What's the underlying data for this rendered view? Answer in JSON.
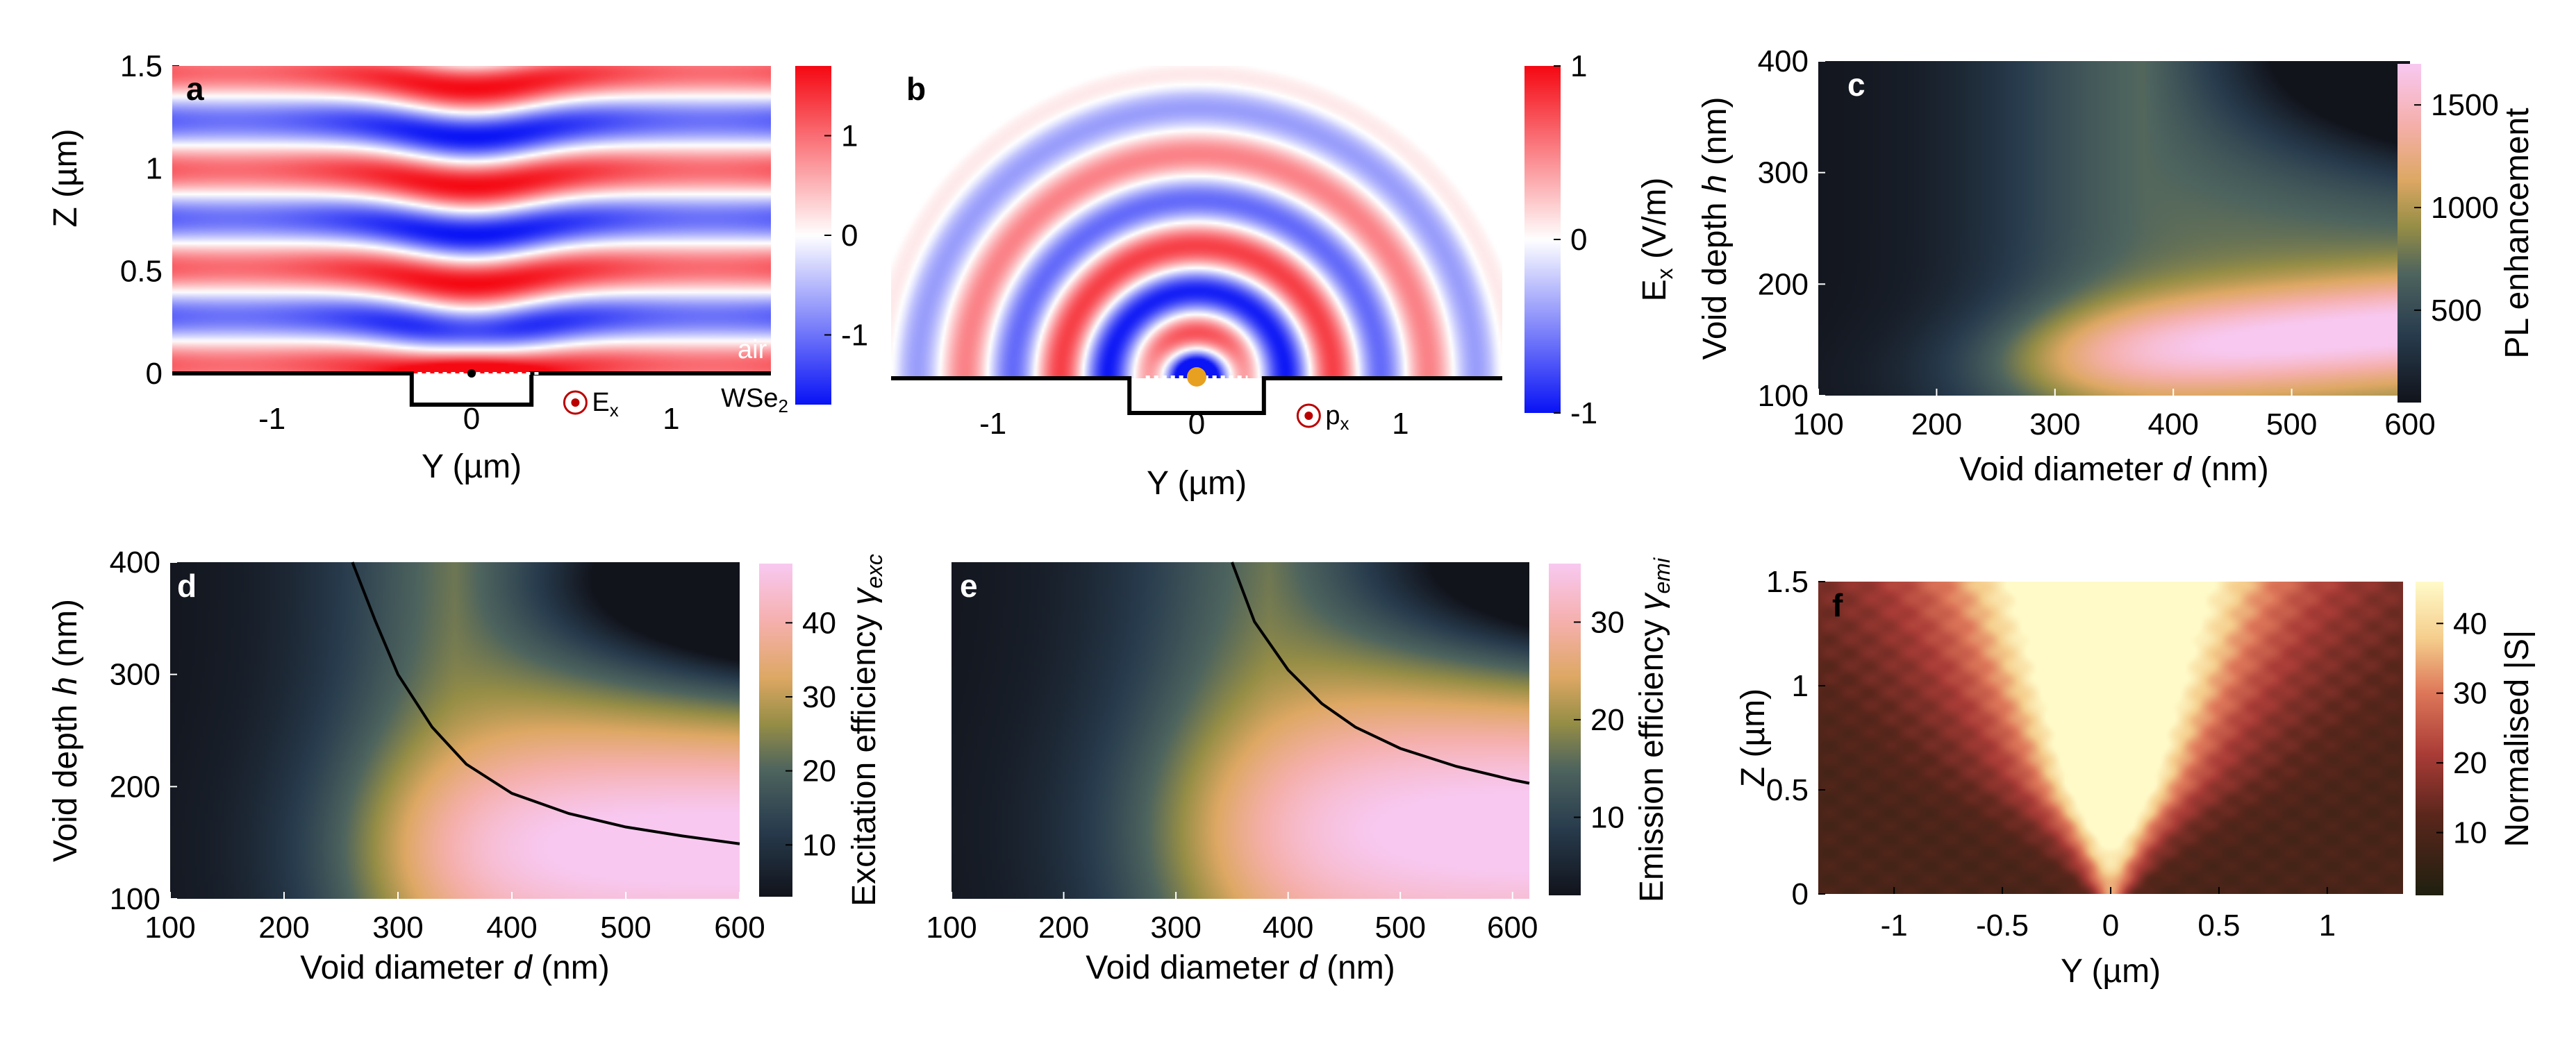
{
  "chart_data": [
    {
      "id": "a",
      "type": "heatmap",
      "panel_letter": "a",
      "xlabel": "Y (µm)",
      "ylabel": "Z (µm)",
      "xticks": [
        "-1",
        "0",
        "1"
      ],
      "xtick_values": [
        -1,
        0,
        1
      ],
      "yticks": [
        "0",
        "0.5",
        "1",
        "1.5"
      ],
      "ytick_values": [
        0,
        0.5,
        1,
        1.5
      ],
      "xlim": [
        -1.5,
        1.5
      ],
      "ylim": [
        0,
        1.5
      ],
      "colorbar": {
        "ticks": [
          "-1",
          "0",
          "1"
        ],
        "tick_values": [
          -1,
          0,
          1
        ],
        "range": [
          -1.7,
          1.7
        ],
        "colormap": "blue-white-red"
      },
      "annotations": [
        "air",
        "WSe",
        "2",
        "E",
        "x"
      ]
    },
    {
      "id": "b",
      "type": "heatmap",
      "panel_letter": "b",
      "xlabel": "Y (µm)",
      "ylabel": "",
      "xticks": [
        "-1",
        "0",
        "1"
      ],
      "xtick_values": [
        -1,
        0,
        1
      ],
      "xlim": [
        -1.5,
        1.5
      ],
      "colorbar": {
        "label": "E",
        "label_sub": "x",
        "label_unit": " (V/m)",
        "ticks": [
          "-1",
          "0",
          "1"
        ],
        "tick_values": [
          -1,
          0,
          1
        ],
        "range": [
          -1,
          1
        ],
        "colormap": "blue-white-red"
      },
      "annotations": [
        "p",
        "x"
      ]
    },
    {
      "id": "c",
      "type": "heatmap",
      "panel_letter": "c",
      "xlabel_pre": "Void diameter ",
      "xlabel_var": "d",
      "xlabel_post": " (nm)",
      "ylabel_pre": "Void depth ",
      "ylabel_var": "h",
      "ylabel_post": " (nm)",
      "xticks": [
        "100",
        "200",
        "300",
        "400",
        "500",
        "600"
      ],
      "xtick_values": [
        100,
        200,
        300,
        400,
        500,
        600
      ],
      "yticks": [
        "100",
        "200",
        "300",
        "400"
      ],
      "ytick_values": [
        100,
        200,
        300,
        400
      ],
      "xlim": [
        100,
        600
      ],
      "ylim": [
        100,
        400
      ],
      "colorbar": {
        "label": "PL enhancement",
        "ticks": [
          "500",
          "1000",
          "1500"
        ],
        "tick_values": [
          500,
          1000,
          1500
        ],
        "range": [
          50,
          1700
        ],
        "colormap": "batlow-like"
      }
    },
    {
      "id": "d",
      "type": "heatmap",
      "panel_letter": "d",
      "xlabel_pre": "Void diameter ",
      "xlabel_var": "d",
      "xlabel_post": " (nm)",
      "ylabel_pre": "Void depth ",
      "ylabel_var": "h",
      "ylabel_post": " (nm)",
      "xticks": [
        "100",
        "200",
        "300",
        "400",
        "500",
        "600"
      ],
      "xtick_values": [
        100,
        200,
        300,
        400,
        500,
        600
      ],
      "yticks": [
        "100",
        "200",
        "300",
        "400"
      ],
      "ytick_values": [
        100,
        200,
        300,
        400
      ],
      "xlim": [
        100,
        600
      ],
      "ylim": [
        100,
        400
      ],
      "colorbar": {
        "label": "Excitation efficiency ",
        "label_var": "γ",
        "label_sub": "exc",
        "ticks": [
          "10",
          "20",
          "30",
          "40"
        ],
        "tick_values": [
          10,
          20,
          30,
          40
        ],
        "range": [
          3,
          48
        ],
        "colormap": "batlow-like"
      },
      "curve": {
        "x": [
          260,
          280,
          300,
          330,
          360,
          400,
          450,
          500,
          550,
          600
        ],
        "y": [
          400,
          348,
          300,
          253,
          220,
          194,
          176,
          164,
          156,
          149
        ]
      }
    },
    {
      "id": "e",
      "type": "heatmap",
      "panel_letter": "e",
      "xlabel_pre": "Void diameter ",
      "xlabel_var": "d",
      "xlabel_post": " (nm)",
      "ylabel_pre": "",
      "ylabel_var": "",
      "ylabel_post": "",
      "xticks": [
        "100",
        "200",
        "300",
        "400",
        "500",
        "600"
      ],
      "xtick_values": [
        100,
        200,
        300,
        400,
        500,
        600
      ],
      "xlim": [
        100,
        615
      ],
      "ylim": [
        100,
        400
      ],
      "colorbar": {
        "label": "Emission efficiency ",
        "label_var": "γ",
        "label_sub": "emi",
        "ticks": [
          "10",
          "20",
          "30"
        ],
        "tick_values": [
          10,
          20,
          30
        ],
        "range": [
          2,
          36
        ],
        "colormap": "batlow-like"
      },
      "curve": {
        "x": [
          350,
          370,
          400,
          430,
          460,
          500,
          550,
          600,
          615
        ],
        "y": [
          400,
          347,
          304,
          274,
          253,
          234,
          218,
          206,
          203
        ]
      }
    },
    {
      "id": "f",
      "type": "heatmap",
      "panel_letter": "f",
      "xlabel": "Y (µm)",
      "ylabel": "Z (µm)",
      "xticks": [
        "-1",
        "-0.5",
        "0",
        "0.5",
        "1"
      ],
      "xtick_values": [
        -1,
        -0.5,
        0,
        0.5,
        1
      ],
      "yticks": [
        "0",
        "0.5",
        "1",
        "1.5"
      ],
      "ytick_values": [
        0,
        0.5,
        1,
        1.5
      ],
      "xlim": [
        -1.35,
        1.35
      ],
      "ylim": [
        0,
        1.5
      ],
      "colorbar": {
        "label": "Normalised |S|",
        "ticks": [
          "10",
          "20",
          "30",
          "40"
        ],
        "tick_values": [
          10,
          20,
          30,
          40
        ],
        "range": [
          1,
          46
        ],
        "colormap": "hot-like"
      }
    }
  ]
}
